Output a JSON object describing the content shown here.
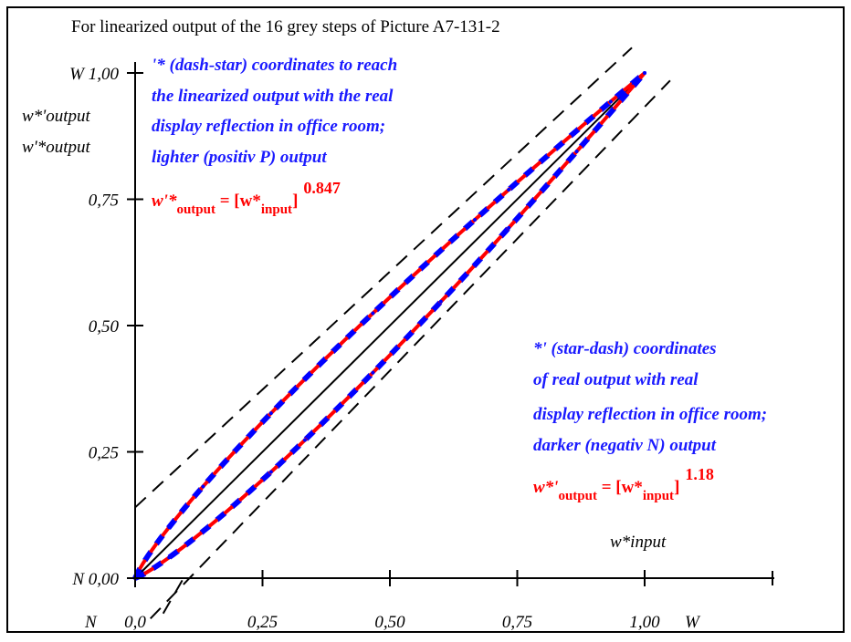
{
  "chart_data": {
    "type": "line",
    "title": "For linearized output of the 16 grey steps of Picture A7-131-2",
    "x_axis": {
      "range": [
        0,
        1
      ],
      "ticks": [
        0,
        0.25,
        0.5,
        0.75,
        1.0
      ],
      "tick_labels": [
        "0,0",
        "0,25",
        "0,50",
        "0,75",
        "1,00"
      ],
      "start_label": "N",
      "end_label": "W",
      "label": "w*input"
    },
    "y_axis": {
      "range": [
        0,
        1
      ],
      "ticks": [
        0,
        0.25,
        0.5,
        0.75,
        1.0
      ],
      "tick_labels": [
        "N 0,00",
        "0,25",
        "0,50",
        "0,75",
        "W 1,00"
      ],
      "labels": [
        "w*'output",
        "w'*output"
      ]
    },
    "reference_lines": [
      {
        "style": "solid",
        "color": "#000000",
        "points": [
          [
            0,
            0
          ],
          [
            1,
            1
          ]
        ]
      },
      {
        "style": "dashed",
        "color": "#000000",
        "points": [
          [
            0,
            0.14
          ],
          [
            0.975,
            1.05
          ]
        ]
      },
      {
        "style": "dashed",
        "color": "#000000",
        "points": [
          [
            0.03,
            -0.08
          ],
          [
            1.05,
            0.985
          ]
        ]
      },
      {
        "style": "dashed",
        "color": "#000000",
        "points": [
          [
            0.055,
            -0.07
          ],
          [
            0.095,
            0.0
          ]
        ]
      }
    ],
    "series": [
      {
        "exponent": 0.847,
        "colors": [
          "#0000ff",
          "#ff0000"
        ],
        "x": [
          0,
          0.0667,
          0.1333,
          0.2,
          0.2667,
          0.3333,
          0.4,
          0.4667,
          0.5333,
          0.6,
          0.6667,
          0.7333,
          0.8,
          0.8667,
          0.9333,
          1.0
        ]
      },
      {
        "exponent": 1.18,
        "colors": [
          "#0000ff",
          "#ff0000"
        ],
        "x": [
          0,
          0.0667,
          0.1333,
          0.2,
          0.2667,
          0.3333,
          0.4,
          0.4667,
          0.5333,
          0.6,
          0.6667,
          0.7333,
          0.8,
          0.8667,
          0.9333,
          1.0
        ]
      }
    ],
    "annotations": {
      "upper": {
        "lines": [
          "'* (dash-star) coordinates to reach",
          "the linearized output with the real",
          "display reflection in office room;",
          "lighter (positiv P) output"
        ],
        "formula": {
          "lhs": "w'*",
          "lhs_sub": "output",
          "eq": " = [w*",
          "rhs_sub": "input",
          "close": "]",
          "exponent": "0.847"
        }
      },
      "lower": {
        "lines": [
          "*' (star-dash) coordinates",
          "of real output with real",
          "display reflection in office room;",
          "darker (negativ N) output"
        ],
        "formula": {
          "lhs": "w*'",
          "lhs_sub": "output",
          "eq": " = [w*",
          "rhs_sub": "input",
          "close": "]",
          "exponent": "1.18"
        }
      }
    },
    "grid": false
  }
}
